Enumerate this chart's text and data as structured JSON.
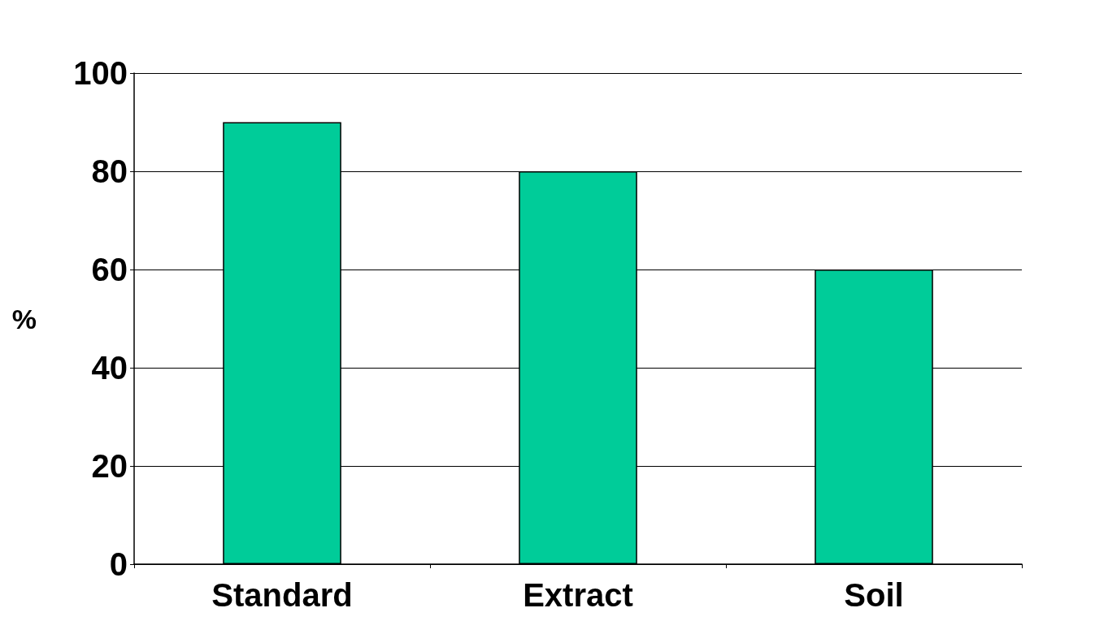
{
  "chart_data": {
    "type": "bar",
    "ylabel": "%",
    "categories": [
      "Standard",
      "Extract",
      "Soil"
    ],
    "values": [
      90,
      80,
      60
    ],
    "color": "#00cc99",
    "ylim": [
      0,
      100
    ],
    "yticks": [
      0,
      20,
      40,
      60,
      80,
      100
    ],
    "grid": "y"
  }
}
